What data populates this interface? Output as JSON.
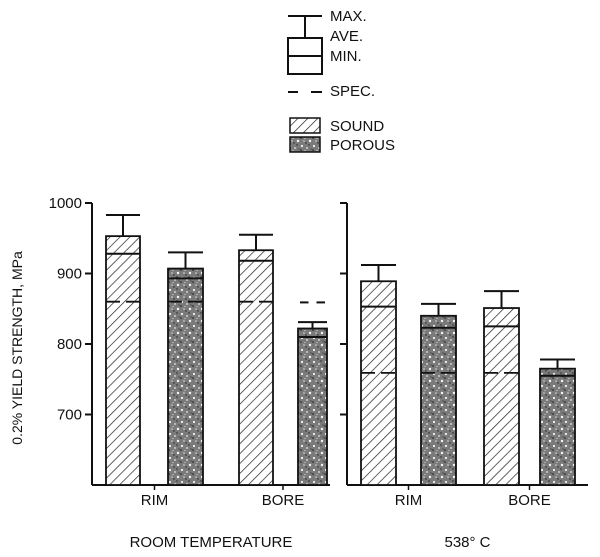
{
  "chart_data": {
    "type": "bar",
    "ylabel": "0.2% YIELD STRENGTH, MPa",
    "ylim": [
      600,
      1000
    ],
    "yticks": [
      700,
      800,
      900,
      1000
    ],
    "grid": false,
    "legend_placement": "top-center",
    "legend": {
      "max": "MAX.",
      "ave": "AVE.",
      "min": "MIN.",
      "spec": "SPEC.",
      "sound": "SOUND",
      "porous": "POROUS"
    },
    "panels": [
      {
        "group_label": "ROOM TEMPERATURE",
        "categories": [
          {
            "label": "RIM",
            "bars": [
              {
                "material": "sound",
                "min": 928,
                "ave": 953,
                "max": 983,
                "spec": 860
              },
              {
                "material": "porous",
                "min": 893,
                "ave": 907,
                "max": 930,
                "spec": 860
              }
            ]
          },
          {
            "label": "BORE",
            "bars": [
              {
                "material": "sound",
                "min": 918,
                "ave": 933,
                "max": 955,
                "spec": 860
              },
              {
                "material": "porous",
                "min": 810,
                "ave": 822,
                "max": 831,
                "spec": 859
              }
            ]
          }
        ]
      },
      {
        "group_label": "538° C",
        "categories": [
          {
            "label": "RIM",
            "bars": [
              {
                "material": "sound",
                "min": 853,
                "ave": 889,
                "max": 912,
                "spec": 759
              },
              {
                "material": "porous",
                "min": 823,
                "ave": 840,
                "max": 857,
                "spec": 759
              }
            ]
          },
          {
            "label": "BORE",
            "bars": [
              {
                "material": "sound",
                "min": 825,
                "ave": 851,
                "max": 875,
                "spec": 759
              },
              {
                "material": "porous",
                "min": 755,
                "ave": 765,
                "max": 778,
                "spec": 755
              }
            ]
          }
        ]
      }
    ]
  }
}
